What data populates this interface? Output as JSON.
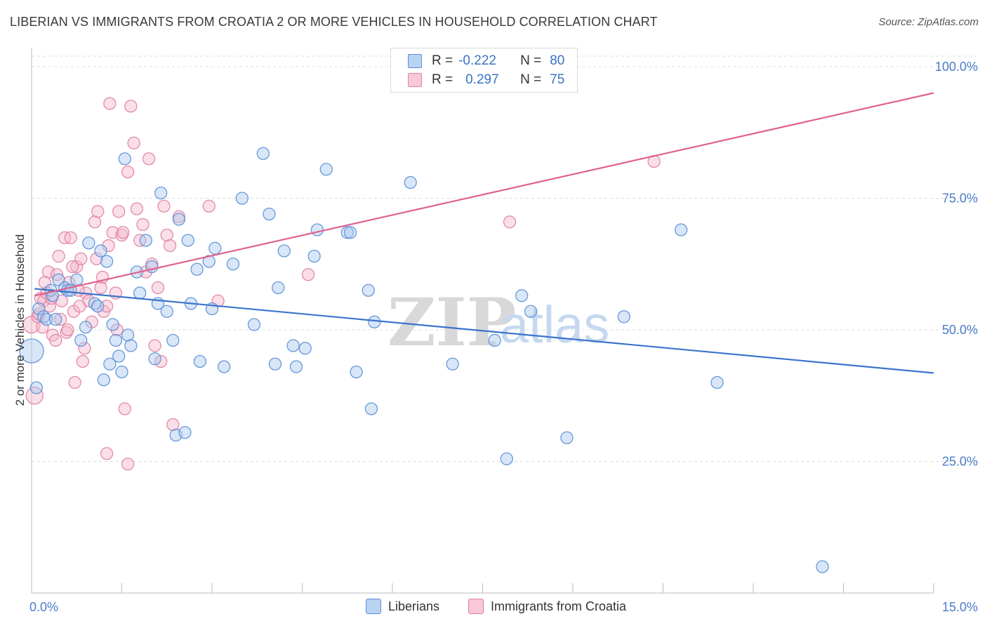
{
  "header": {
    "title": "LIBERIAN VS IMMIGRANTS FROM CROATIA 2 OR MORE VEHICLES IN HOUSEHOLD CORRELATION CHART",
    "source": "Source: ZipAtlas.com"
  },
  "legend": {
    "rows": [
      {
        "r_label": "R =",
        "r_value": "-0.222",
        "n_label": "N =",
        "n_value": "80"
      },
      {
        "r_label": "R =",
        "r_value": "0.297",
        "n_label": "N =",
        "n_value": "75"
      }
    ],
    "bottom": [
      "Liberians",
      "Immigrants from Croatia"
    ]
  },
  "watermark": {
    "zip": "ZIP",
    "atlas": "atlas"
  },
  "colors": {
    "blue_fill": "#a9c8f0",
    "blue_stroke": "#5a8fd6",
    "blue_line": "#3b74cc",
    "pink_fill": "#f5b9cc",
    "pink_stroke": "#e07fa0",
    "pink_line": "#e0628f",
    "tick_text": "#4a7cc7",
    "grid": "#dddddd"
  },
  "chart_data": {
    "type": "scatter",
    "title": "LIBERIAN VS IMMIGRANTS FROM CROATIA 2 OR MORE VEHICLES IN HOUSEHOLD CORRELATION CHART",
    "xlabel": "",
    "ylabel": "2 or more Vehicles in Household",
    "xlim": [
      0,
      15
    ],
    "ylim": [
      0,
      102
    ],
    "x_tick_labels": [
      "0.0%",
      "15.0%"
    ],
    "y_ticks": [
      25,
      50,
      75,
      100
    ],
    "y_tick_labels": [
      "25.0%",
      "50.0%",
      "75.0%",
      "100.0%"
    ],
    "grid": "horizontal dashed",
    "legend_position": "top-center",
    "series": [
      {
        "name": "Liberians",
        "color": "#5a8fd6",
        "trend": {
          "x": [
            0.05,
            15.0
          ],
          "y": [
            57.8,
            41.8
          ]
        },
        "points": [
          [
            0.0,
            46.0
          ],
          [
            0.12,
            54.0
          ],
          [
            0.2,
            52.5
          ],
          [
            0.25,
            52.0
          ],
          [
            0.32,
            57.5
          ],
          [
            0.35,
            56.5
          ],
          [
            0.4,
            52.0
          ],
          [
            0.45,
            59.5
          ],
          [
            0.55,
            58.0
          ],
          [
            0.6,
            57.5
          ],
          [
            0.65,
            57.5
          ],
          [
            0.75,
            59.5
          ],
          [
            0.82,
            48.0
          ],
          [
            0.9,
            50.5
          ],
          [
            0.95,
            66.5
          ],
          [
            1.05,
            55.0
          ],
          [
            1.1,
            54.5
          ],
          [
            1.15,
            65.0
          ],
          [
            1.2,
            40.5
          ],
          [
            1.25,
            63.0
          ],
          [
            1.3,
            43.5
          ],
          [
            1.35,
            51.0
          ],
          [
            1.4,
            48.0
          ],
          [
            1.45,
            45.0
          ],
          [
            1.5,
            42.0
          ],
          [
            1.55,
            82.5
          ],
          [
            1.6,
            49.0
          ],
          [
            1.65,
            47.0
          ],
          [
            1.75,
            61.0
          ],
          [
            1.8,
            57.0
          ],
          [
            1.9,
            67.0
          ],
          [
            2.0,
            62.0
          ],
          [
            2.05,
            44.5
          ],
          [
            2.1,
            55.0
          ],
          [
            2.15,
            76.0
          ],
          [
            2.25,
            53.5
          ],
          [
            2.35,
            48.0
          ],
          [
            2.4,
            30.0
          ],
          [
            2.45,
            71.0
          ],
          [
            2.55,
            30.5
          ],
          [
            2.6,
            67.0
          ],
          [
            2.65,
            55.0
          ],
          [
            2.75,
            61.5
          ],
          [
            2.8,
            44.0
          ],
          [
            2.95,
            63.0
          ],
          [
            3.0,
            54.0
          ],
          [
            3.05,
            65.5
          ],
          [
            3.2,
            43.0
          ],
          [
            3.35,
            62.5
          ],
          [
            3.5,
            75.0
          ],
          [
            3.7,
            51.0
          ],
          [
            3.85,
            83.5
          ],
          [
            3.95,
            72.0
          ],
          [
            4.05,
            43.5
          ],
          [
            4.1,
            58.0
          ],
          [
            4.2,
            65.0
          ],
          [
            4.35,
            47.0
          ],
          [
            4.4,
            43.0
          ],
          [
            4.55,
            46.5
          ],
          [
            4.7,
            64.0
          ],
          [
            4.75,
            69.0
          ],
          [
            4.9,
            80.5
          ],
          [
            5.25,
            68.5
          ],
          [
            5.3,
            68.5
          ],
          [
            5.4,
            42.0
          ],
          [
            5.6,
            57.5
          ],
          [
            5.65,
            35.0
          ],
          [
            5.7,
            51.5
          ],
          [
            6.3,
            78.0
          ],
          [
            7.0,
            43.5
          ],
          [
            7.7,
            48.0
          ],
          [
            7.9,
            25.5
          ],
          [
            8.15,
            56.5
          ],
          [
            8.3,
            53.5
          ],
          [
            8.9,
            29.5
          ],
          [
            9.85,
            52.5
          ],
          [
            10.8,
            69.0
          ],
          [
            11.4,
            40.0
          ],
          [
            13.15,
            5.0
          ],
          [
            0.08,
            39.0
          ]
        ]
      },
      {
        "name": "Immigrants from Croatia",
        "color": "#e07fa0",
        "trend": {
          "x": [
            0.05,
            15.0
          ],
          "y": [
            56.5,
            95.0
          ]
        },
        "points": [
          [
            0.0,
            51.0
          ],
          [
            0.05,
            37.5
          ],
          [
            0.1,
            52.5
          ],
          [
            0.15,
            56.0
          ],
          [
            0.2,
            55.5
          ],
          [
            0.25,
            57.0
          ],
          [
            0.28,
            61.0
          ],
          [
            0.3,
            54.5
          ],
          [
            0.35,
            49.0
          ],
          [
            0.4,
            48.0
          ],
          [
            0.42,
            60.5
          ],
          [
            0.45,
            64.0
          ],
          [
            0.5,
            55.5
          ],
          [
            0.55,
            67.5
          ],
          [
            0.58,
            49.5
          ],
          [
            0.6,
            50.0
          ],
          [
            0.62,
            59.0
          ],
          [
            0.65,
            67.5
          ],
          [
            0.7,
            53.5
          ],
          [
            0.72,
            40.0
          ],
          [
            0.75,
            62.0
          ],
          [
            0.8,
            54.5
          ],
          [
            0.82,
            63.5
          ],
          [
            0.85,
            44.0
          ],
          [
            0.9,
            57.0
          ],
          [
            0.95,
            55.5
          ],
          [
            1.0,
            51.5
          ],
          [
            1.05,
            70.5
          ],
          [
            1.1,
            72.5
          ],
          [
            1.15,
            58.0
          ],
          [
            1.2,
            53.5
          ],
          [
            1.25,
            54.5
          ],
          [
            1.3,
            93.0
          ],
          [
            1.35,
            68.5
          ],
          [
            1.4,
            57.0
          ],
          [
            1.45,
            72.5
          ],
          [
            1.5,
            68.0
          ],
          [
            1.55,
            35.0
          ],
          [
            1.6,
            80.0
          ],
          [
            1.65,
            92.5
          ],
          [
            1.7,
            85.5
          ],
          [
            1.75,
            73.0
          ],
          [
            1.8,
            67.0
          ],
          [
            1.85,
            70.0
          ],
          [
            1.9,
            61.0
          ],
          [
            1.95,
            82.5
          ],
          [
            2.0,
            62.5
          ],
          [
            2.05,
            47.0
          ],
          [
            2.1,
            58.0
          ],
          [
            2.15,
            44.0
          ],
          [
            2.2,
            73.5
          ],
          [
            2.25,
            68.0
          ],
          [
            2.3,
            66.0
          ],
          [
            2.35,
            32.0
          ],
          [
            2.45,
            71.5
          ],
          [
            2.95,
            73.5
          ],
          [
            3.1,
            55.5
          ],
          [
            4.6,
            60.5
          ],
          [
            7.95,
            70.5
          ],
          [
            10.35,
            82.0
          ],
          [
            1.25,
            26.5
          ],
          [
            1.6,
            24.5
          ],
          [
            0.12,
            53.0
          ],
          [
            0.18,
            50.5
          ],
          [
            0.22,
            59.0
          ],
          [
            0.33,
            56.0
          ],
          [
            0.48,
            52.0
          ],
          [
            0.68,
            62.0
          ],
          [
            0.78,
            57.5
          ],
          [
            0.88,
            46.5
          ],
          [
            1.08,
            63.5
          ],
          [
            1.18,
            60.0
          ],
          [
            1.28,
            66.0
          ],
          [
            1.42,
            50.0
          ],
          [
            1.52,
            68.5
          ]
        ]
      }
    ]
  }
}
